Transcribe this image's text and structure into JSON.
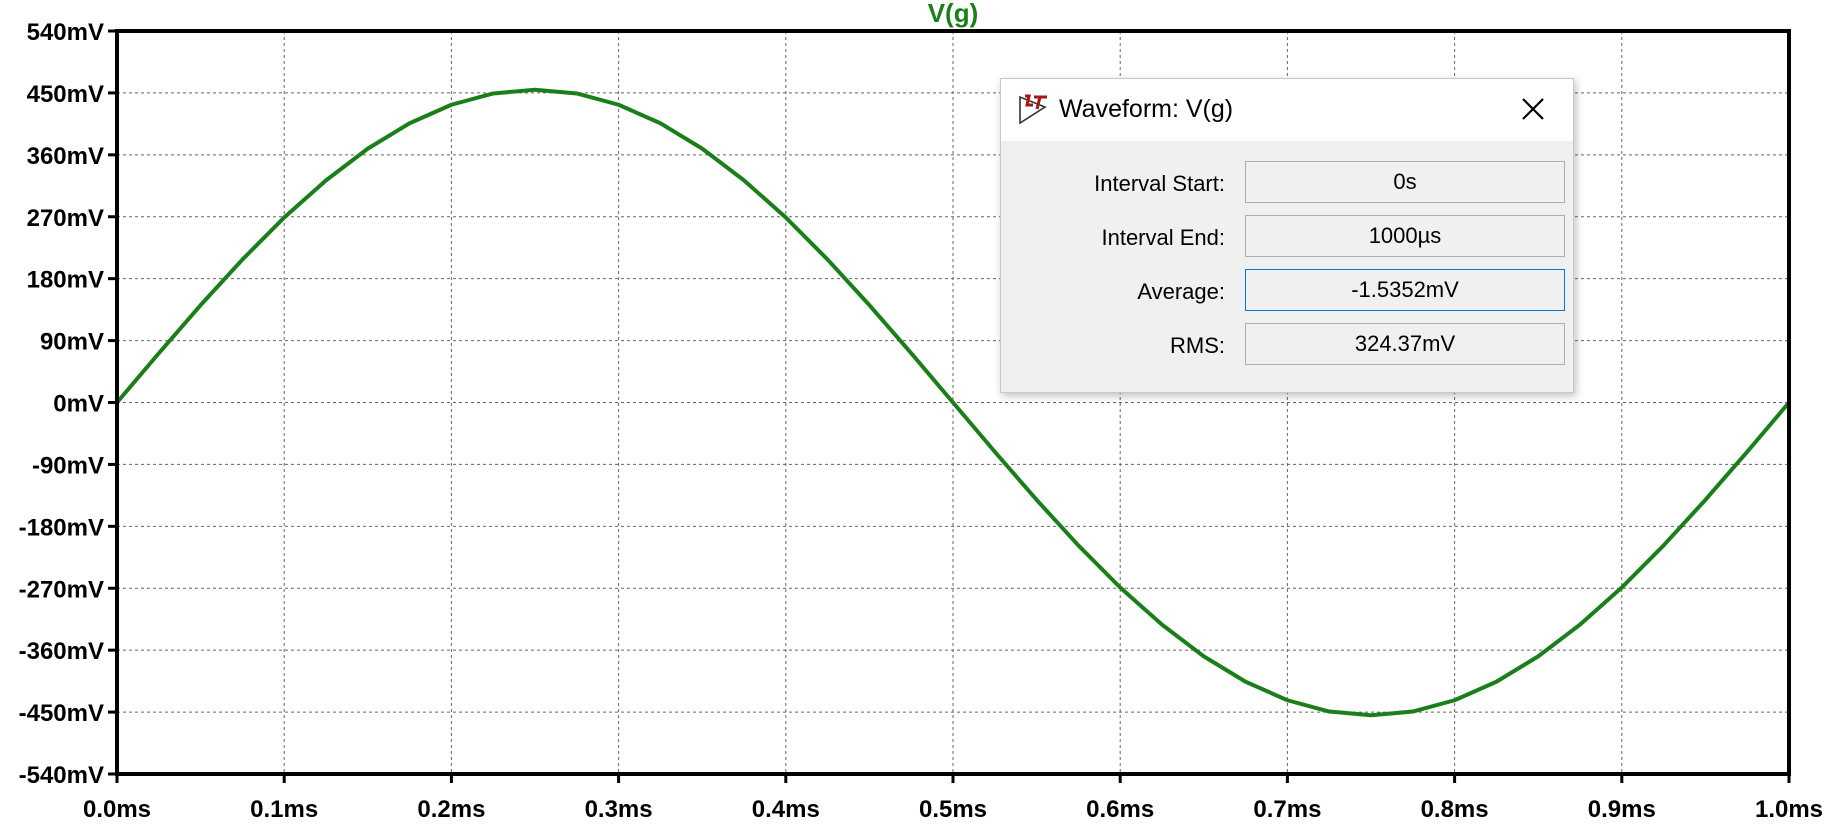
{
  "trace": {
    "name": "V(g)",
    "color": "#1a7f1a"
  },
  "chart_data": {
    "type": "line",
    "title": "V(g)",
    "xlabel": "",
    "ylabel": "",
    "x_ticks": [
      "0.0ms",
      "0.1ms",
      "0.2ms",
      "0.3ms",
      "0.4ms",
      "0.5ms",
      "0.6ms",
      "0.7ms",
      "0.8ms",
      "0.9ms",
      "1.0ms"
    ],
    "y_ticks": [
      "540mV",
      "450mV",
      "360mV",
      "270mV",
      "180mV",
      "90mV",
      "0mV",
      "-90mV",
      "-180mV",
      "-270mV",
      "-360mV",
      "-450mV",
      "-540mV"
    ],
    "xlim": [
      0,
      1.0
    ],
    "ylim": [
      -540,
      540
    ],
    "x_unit": "ms",
    "y_unit": "mV",
    "grid": true,
    "series": [
      {
        "name": "V(g)",
        "color": "#1a7f1a",
        "x": [
          0.0,
          0.025,
          0.05,
          0.075,
          0.1,
          0.125,
          0.15,
          0.175,
          0.2,
          0.225,
          0.25,
          0.275,
          0.3,
          0.325,
          0.35,
          0.375,
          0.4,
          0.425,
          0.45,
          0.475,
          0.5,
          0.525,
          0.55,
          0.575,
          0.6,
          0.625,
          0.65,
          0.675,
          0.7,
          0.725,
          0.75,
          0.775,
          0.8,
          0.825,
          0.85,
          0.875,
          0.9,
          0.925,
          0.95,
          0.975,
          1.0
        ],
        "y": [
          0,
          71.6,
          141.5,
          207.8,
          268.9,
          322.9,
          369.0,
          405.9,
          432.8,
          449.2,
          454.6,
          449.2,
          432.8,
          405.9,
          369.0,
          322.9,
          268.9,
          207.8,
          141.5,
          71.6,
          0,
          -71.6,
          -141.5,
          -207.8,
          -268.9,
          -322.9,
          -369.0,
          -405.9,
          -432.8,
          -449.2,
          -454.6,
          -449.2,
          -432.8,
          -405.9,
          -369.0,
          -322.9,
          -268.9,
          -207.8,
          -141.5,
          -71.6,
          0
        ]
      }
    ]
  },
  "dialog": {
    "title": "Waveform: V(g)",
    "fields": [
      {
        "label": "Interval Start:",
        "value": "0s"
      },
      {
        "label": "Interval End:",
        "value": "1000µs"
      },
      {
        "label": "Average:",
        "value": "-1.5352mV"
      },
      {
        "label": "RMS:",
        "value": "324.37mV"
      }
    ],
    "icons": {
      "app": "ltspice-logo-icon",
      "close": "close-icon"
    }
  }
}
